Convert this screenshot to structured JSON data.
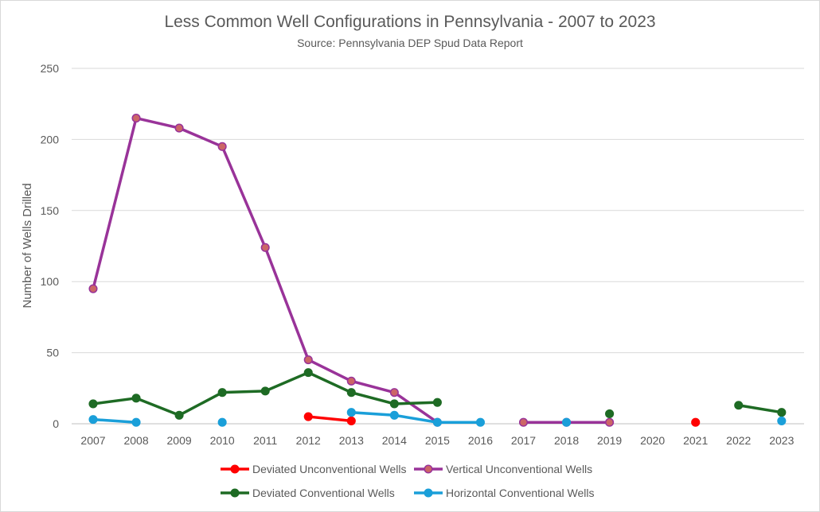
{
  "chart_data": {
    "type": "line",
    "title": "Less Common Well Configurations in Pennsylvania - 2007 to 2023",
    "subtitle": "Source:  Pennsylvania DEP Spud Data Report",
    "xlabel": "",
    "ylabel": "Number of Wells Drilled",
    "categories": [
      "2007",
      "2008",
      "2009",
      "2010",
      "2011",
      "2012",
      "2013",
      "2014",
      "2015",
      "2016",
      "2017",
      "2018",
      "2019",
      "2020",
      "2021",
      "2022",
      "2023"
    ],
    "ylim": [
      0,
      250
    ],
    "yticks": [
      0,
      50,
      100,
      150,
      200,
      250
    ],
    "grid": true,
    "legend_position": "bottom",
    "series": [
      {
        "name": "Deviated Unconventional Wells",
        "color": "#ff0000",
        "marker_color": "#ff0000",
        "values": [
          null,
          null,
          null,
          null,
          null,
          5,
          2,
          null,
          null,
          null,
          null,
          null,
          null,
          null,
          1,
          null,
          null
        ]
      },
      {
        "name": "Vertical Unconventional Wells",
        "color": "#993399",
        "marker_color": "#cc6666",
        "values": [
          95,
          215,
          208,
          195,
          124,
          45,
          30,
          22,
          1,
          null,
          1,
          1,
          1,
          null,
          null,
          null,
          null
        ]
      },
      {
        "name": "Deviated Conventional Wells",
        "color": "#1e6b24",
        "marker_color": "#1e6b24",
        "values": [
          14,
          18,
          6,
          22,
          23,
          36,
          22,
          14,
          15,
          null,
          null,
          null,
          7,
          null,
          null,
          13,
          8
        ]
      },
      {
        "name": "Horizontal Conventional Wells",
        "color": "#1a9fd9",
        "marker_color": "#1a9fd9",
        "values": [
          3,
          1,
          null,
          1,
          null,
          null,
          8,
          6,
          1,
          1,
          null,
          1,
          null,
          null,
          null,
          null,
          2
        ]
      }
    ]
  }
}
